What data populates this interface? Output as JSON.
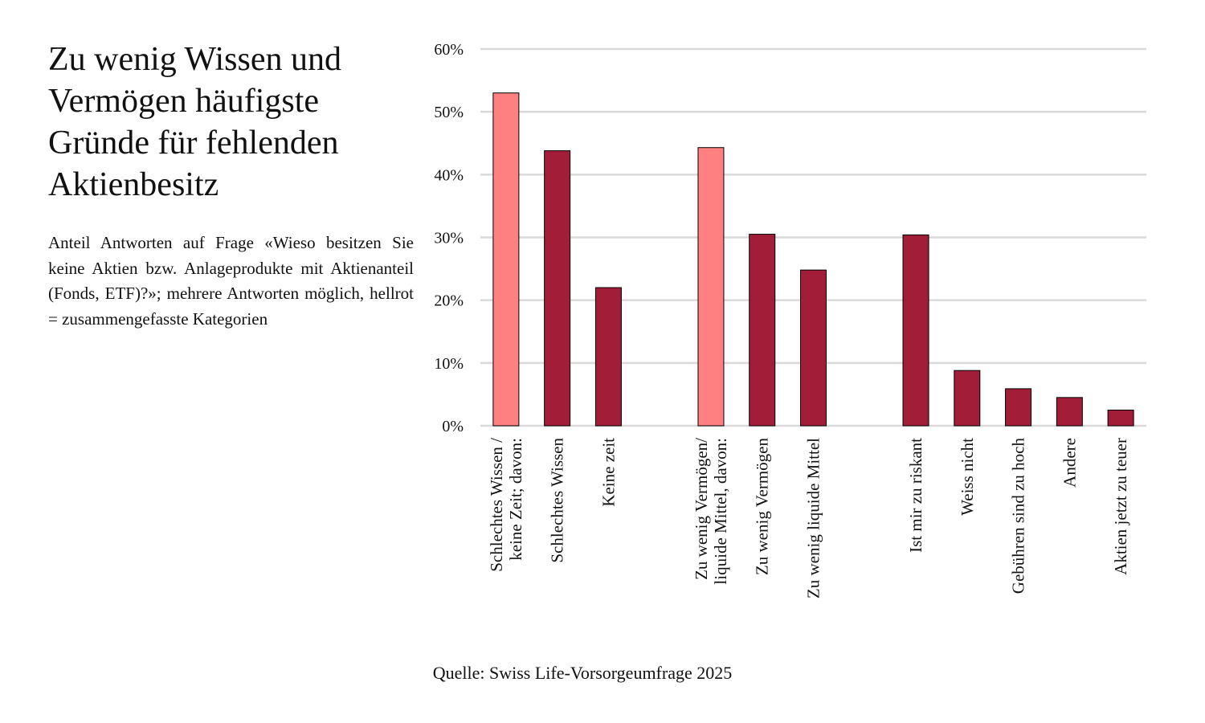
{
  "title": "Zu wenig Wissen und Vermögen häufigste Gründe für fehlenden Aktienbesitz",
  "subtitle": "Anteil Antworten auf Frage «Wieso besitzen Sie keine Aktien bzw. Anlageprodukte mit Aktienanteil (Fonds, ETF)?»; mehrere Antworten möglich, hellrot = zusammengefasste Kategorien",
  "source": "Quelle: Swiss Life-Vorsorgeumfrage 2025",
  "colors": {
    "summary": "#ff8080",
    "detail": "#a21d38",
    "grid": "#d9d9d9"
  },
  "chart_data": {
    "type": "bar",
    "ylim": [
      0,
      60
    ],
    "yticks": [
      0,
      10,
      20,
      30,
      40,
      50,
      60
    ],
    "ytick_labels": [
      "0%",
      "10%",
      "20%",
      "30%",
      "40%",
      "50%",
      "60%"
    ],
    "grid": true,
    "categories": [
      "Schlechtes Wissen /\nkeine Zeit; davon:",
      "Schlechtes Wissen",
      "Keine zeit",
      "",
      "Zu wenig Vermögen/\nliquide Mittel, davon:",
      "Zu wenig Vermögen",
      "Zu wenig liquide Mittel",
      "",
      "Ist mir zu riskant",
      "Weiss nicht",
      "Gebühren sind zu hoch",
      "Andere",
      "Aktien jetzt zu teuer"
    ],
    "values": [
      53,
      43.8,
      22,
      null,
      44.3,
      30.5,
      24.8,
      null,
      30.4,
      8.8,
      5.9,
      4.5,
      2.5
    ],
    "kinds": [
      "summary",
      "detail",
      "detail",
      null,
      "summary",
      "detail",
      "detail",
      null,
      "detail",
      "detail",
      "detail",
      "detail",
      "detail"
    ]
  }
}
